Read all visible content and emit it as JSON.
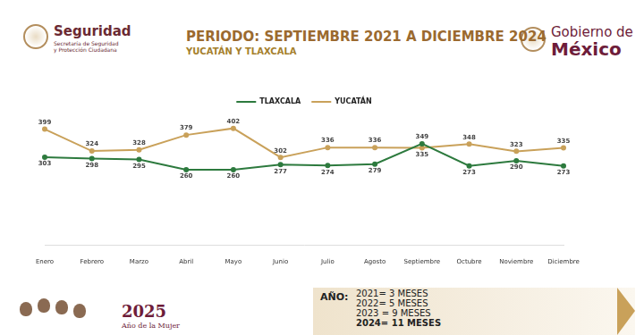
{
  "header": {
    "left": [
      "Seguridad",
      "Secretaría de Seguridad",
      "y Protección Ciudadana"
    ],
    "right": [
      "Gobierno de",
      "México"
    ]
  },
  "chart_data": {
    "type": "line",
    "title": "PERIODO: SEPTIEMBRE 2021 A DICIEMBRE 2024",
    "subtitle": "YUCATÁN Y TLAXCALA",
    "categories": [
      "Enero",
      "Febrero",
      "Marzo",
      "Abril",
      "Mayo",
      "Junio",
      "Julio",
      "Agosto",
      "Septiembre",
      "Octubre",
      "Noviembre",
      "Diciembre"
    ],
    "series": [
      {
        "name": "TLAXCALA",
        "color": "#2d7a3e",
        "marker": "circle",
        "values": [
          303,
          298,
          295,
          260,
          260,
          277,
          274,
          279,
          349,
          273,
          290,
          273
        ]
      },
      {
        "name": "YUCATÁN",
        "color": "#c9a15a",
        "marker": "circle",
        "values": [
          399,
          324,
          328,
          379,
          402,
          302,
          336,
          336,
          335,
          348,
          323,
          335
        ]
      }
    ],
    "ylim": [
      0,
      450
    ],
    "grid": false,
    "legend": "top",
    "data_labels": true,
    "tick_labels": "x"
  },
  "footer": {
    "label": "AÑO:",
    "lines": [
      "2021= 3 MESES",
      "2022= 5 MESES",
      "2023 = 9 MESES",
      "2024= 11 MESES"
    ],
    "emblem": [
      "2025",
      "Año de la Mujer"
    ]
  }
}
